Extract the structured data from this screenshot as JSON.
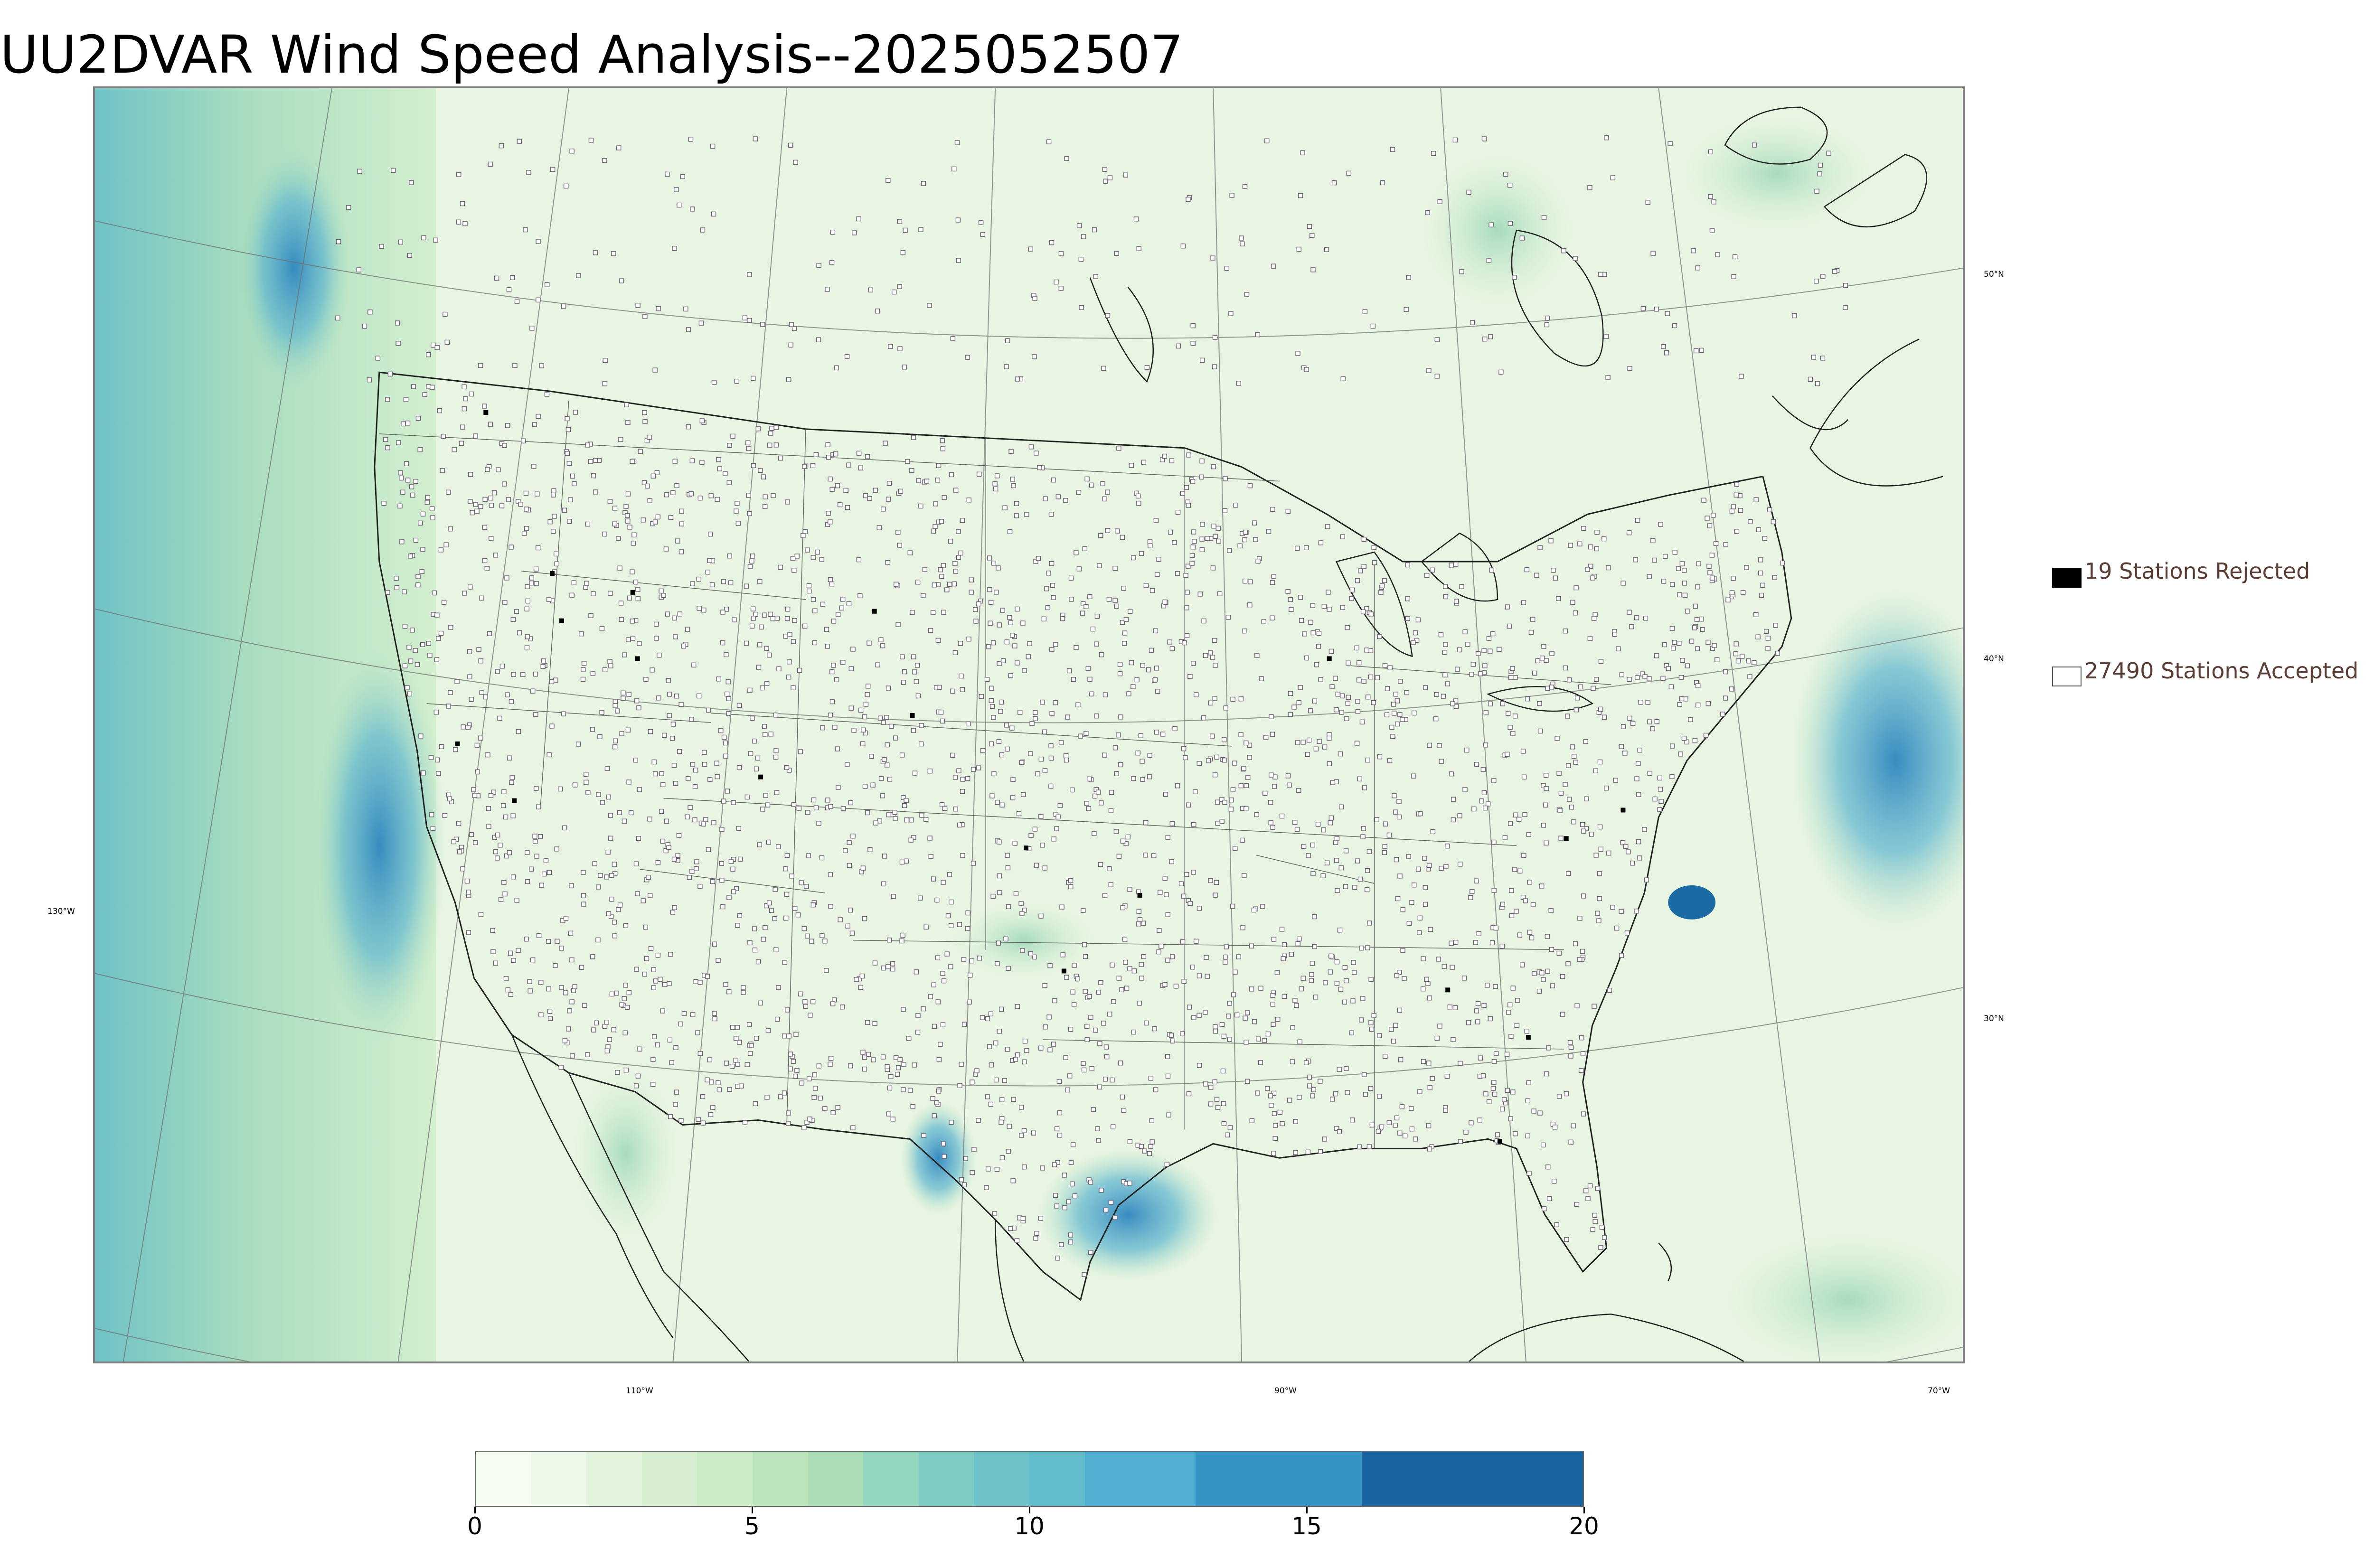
{
  "title": "UU2DVAR Wind Speed Analysis--2025052507",
  "map": {
    "meridian_labels": [
      "130°W",
      "110°W",
      "90°W",
      "70°W"
    ],
    "parallel_labels": [
      "50°N",
      "40°N",
      "30°N"
    ],
    "colors": {
      "land_base": "#ecf7e8",
      "ocean_base": "#bfe6c6",
      "high_wind": "#3d9dcb",
      "extreme_wind": "#1b6aa3",
      "boundary_line": "#222222",
      "station_marker": "#6b5f70"
    },
    "features": [
      "coastlines",
      "country-borders",
      "state-borders",
      "county-borders",
      "lat-lon-graticule",
      "station-markers",
      "wind-speed-shading"
    ]
  },
  "legend": {
    "rejected": {
      "label": "19 Stations Rejected",
      "count": 19,
      "color": "#000000"
    },
    "accepted": {
      "label": "27490 Stations Accepted",
      "count": 27490,
      "color": "#ffffff"
    }
  },
  "colorbar": {
    "ticks": [
      "0",
      "5",
      "10",
      "15",
      "20"
    ],
    "min": 0,
    "max": 20,
    "bins": [
      {
        "from": 0,
        "to": 1,
        "color": "#f7fcf0"
      },
      {
        "from": 1,
        "to": 2,
        "color": "#eef8e8"
      },
      {
        "from": 2,
        "to": 3,
        "color": "#e3f4dd"
      },
      {
        "from": 3,
        "to": 4,
        "color": "#d7efd0"
      },
      {
        "from": 4,
        "to": 5,
        "color": "#cbeac5"
      },
      {
        "from": 5,
        "to": 6,
        "color": "#bbe4bb"
      },
      {
        "from": 6,
        "to": 7,
        "color": "#a8ddb5"
      },
      {
        "from": 7,
        "to": 8,
        "color": "#94d5bd"
      },
      {
        "from": 8,
        "to": 9,
        "color": "#7fccc4"
      },
      {
        "from": 9,
        "to": 10,
        "color": "#6ec3c8"
      },
      {
        "from": 10,
        "to": 11,
        "color": "#62bccc"
      },
      {
        "from": 11,
        "to": 13,
        "color": "#52b0d2"
      },
      {
        "from": 13,
        "to": 16,
        "color": "#3594c4"
      },
      {
        "from": 16,
        "to": 20,
        "color": "#1764a0"
      }
    ]
  }
}
